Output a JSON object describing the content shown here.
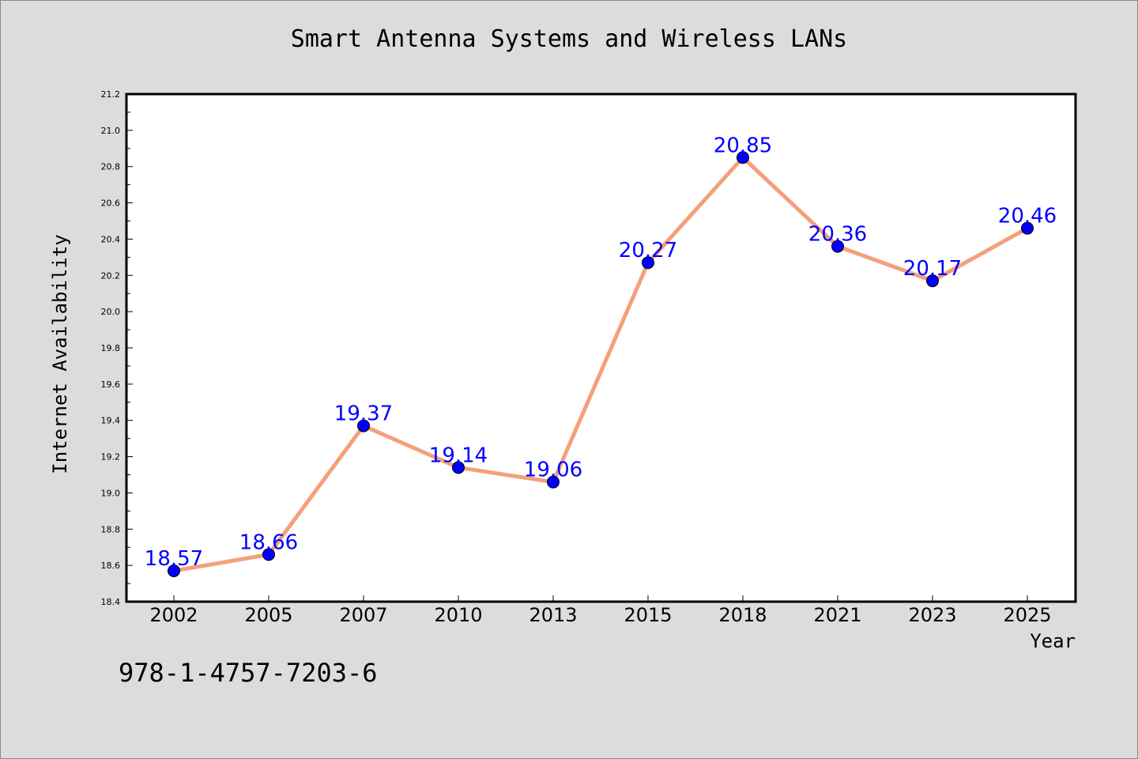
{
  "colors": {
    "background": "#dcdcdc",
    "plot_background": "#ffffff",
    "line": "#f4a07a",
    "marker": "#0000ff",
    "label": "#0000ff"
  },
  "footer": {
    "isbn": "978-1-4757-7203-6"
  },
  "chart_data": {
    "type": "line",
    "title": "Smart Antenna Systems and Wireless LANs",
    "xlabel": "Year",
    "ylabel": "Internet Availability",
    "categories": [
      "2002",
      "2005",
      "2007",
      "2010",
      "2013",
      "2015",
      "2018",
      "2021",
      "2023",
      "2025"
    ],
    "values": [
      18.57,
      18.66,
      19.37,
      19.14,
      19.06,
      20.27,
      20.85,
      20.36,
      20.17,
      20.46
    ],
    "data_labels": [
      "18.57",
      "18.66",
      "19.37",
      "19.14",
      "19.06",
      "20.27",
      "20.85",
      "20.36",
      "20.17",
      "20.46"
    ],
    "ylim": [
      18.4,
      21.2
    ],
    "yticks": [
      "18.4",
      "18.6",
      "18.8",
      "19.0",
      "19.2",
      "19.4",
      "19.6",
      "19.8",
      "20.0",
      "20.2",
      "20.4",
      "20.6",
      "20.8",
      "21.0",
      "21.2"
    ],
    "grid": false,
    "legend": "none"
  }
}
